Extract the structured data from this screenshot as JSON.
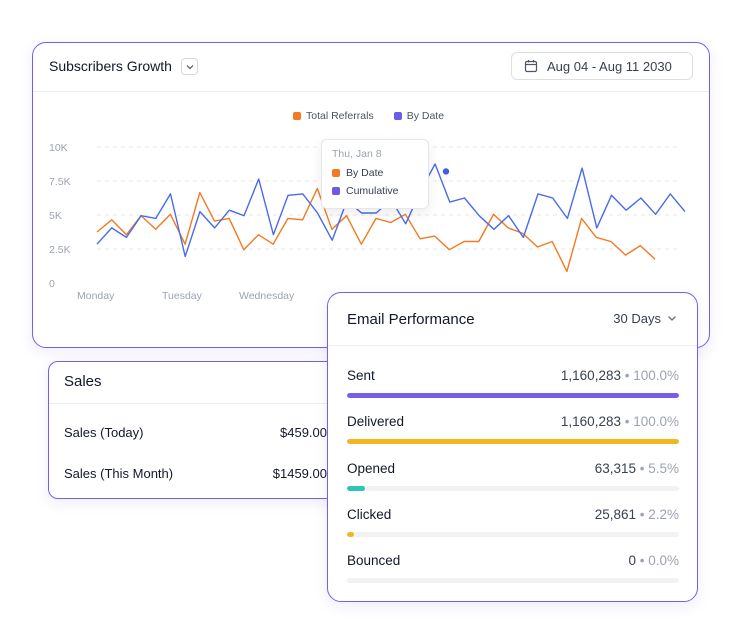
{
  "subscribers": {
    "title": "Subscribers Growth",
    "date_range": "Aug 04 - Aug 11 2030",
    "legend": [
      {
        "name": "Total Referrals",
        "color": "#f47920"
      },
      {
        "name": "By Date",
        "color": "#6b5ce7"
      }
    ],
    "tooltip": {
      "date": "Thu, Jan 8",
      "items": [
        {
          "label": "By Date",
          "color": "#f47920"
        },
        {
          "label": "Cumulative",
          "color": "#6b5ce7"
        }
      ]
    }
  },
  "chart_data": {
    "type": "line",
    "y_ticks": [
      "10K",
      "7.5K",
      "5K",
      "2.5K",
      "0"
    ],
    "ylim": [
      0,
      10000
    ],
    "x_tick_labels": [
      "Monday",
      "Tuesday",
      "Wednesday"
    ],
    "grid": true,
    "legend_placement": "top-center",
    "series": [
      {
        "name": "Total Referrals",
        "color": "#f47920",
        "values": [
          3750,
          4650,
          3550,
          4950,
          3950,
          5050,
          2850,
          6650,
          4550,
          4750,
          2450,
          3550,
          2850,
          4750,
          4650,
          6950,
          3950,
          4950,
          2850,
          4750,
          4450,
          5050,
          3250,
          3450,
          2450,
          3050,
          3050,
          5050,
          4050,
          3650,
          2650,
          3050,
          850,
          4750,
          3350,
          3050,
          2050,
          2750,
          1750
        ]
      },
      {
        "name": "By Date",
        "color": "#4a6be8",
        "values": [
          2850,
          4050,
          3350,
          4950,
          4750,
          6550,
          1950,
          5250,
          4050,
          5350,
          4950,
          7650,
          3550,
          6450,
          6550,
          5150,
          3150,
          6050,
          5150,
          5150,
          6150,
          4350,
          6750,
          8750,
          5950,
          6250,
          4950,
          3950,
          4950,
          3350,
          6550,
          6250,
          4750,
          8450,
          4050,
          6450,
          5350,
          6250,
          5050,
          6550,
          5250
        ]
      }
    ],
    "highlight_value": 8200
  },
  "sales": {
    "title": "Sales",
    "rows": [
      {
        "label": "Sales (Today)",
        "value": "$459.00"
      },
      {
        "label": "Sales (This Month)",
        "value": "$1459.00"
      }
    ]
  },
  "email": {
    "title": "Email Performance",
    "range": "30 Days",
    "metrics": [
      {
        "label": "Sent",
        "value": "1,160,283",
        "percent_text": "• 100.0%",
        "fraction": 1.0,
        "color": "#7a5ce6"
      },
      {
        "label": "Delivered",
        "value": "1,160,283",
        "percent_text": "• 100.0%",
        "fraction": 1.0,
        "color": "#f2b61f"
      },
      {
        "label": "Opened",
        "value": "63,315",
        "percent_text": "• 5.5%",
        "fraction": 0.055,
        "color": "#2ec4b6"
      },
      {
        "label": "Clicked",
        "value": "25,861",
        "percent_text": "• 2.2%",
        "fraction": 0.022,
        "color": "#f2b61f"
      },
      {
        "label": "Bounced",
        "value": "0",
        "percent_text": "• 0.0%",
        "fraction": 0.0,
        "color": "#e5e7eb"
      }
    ]
  }
}
